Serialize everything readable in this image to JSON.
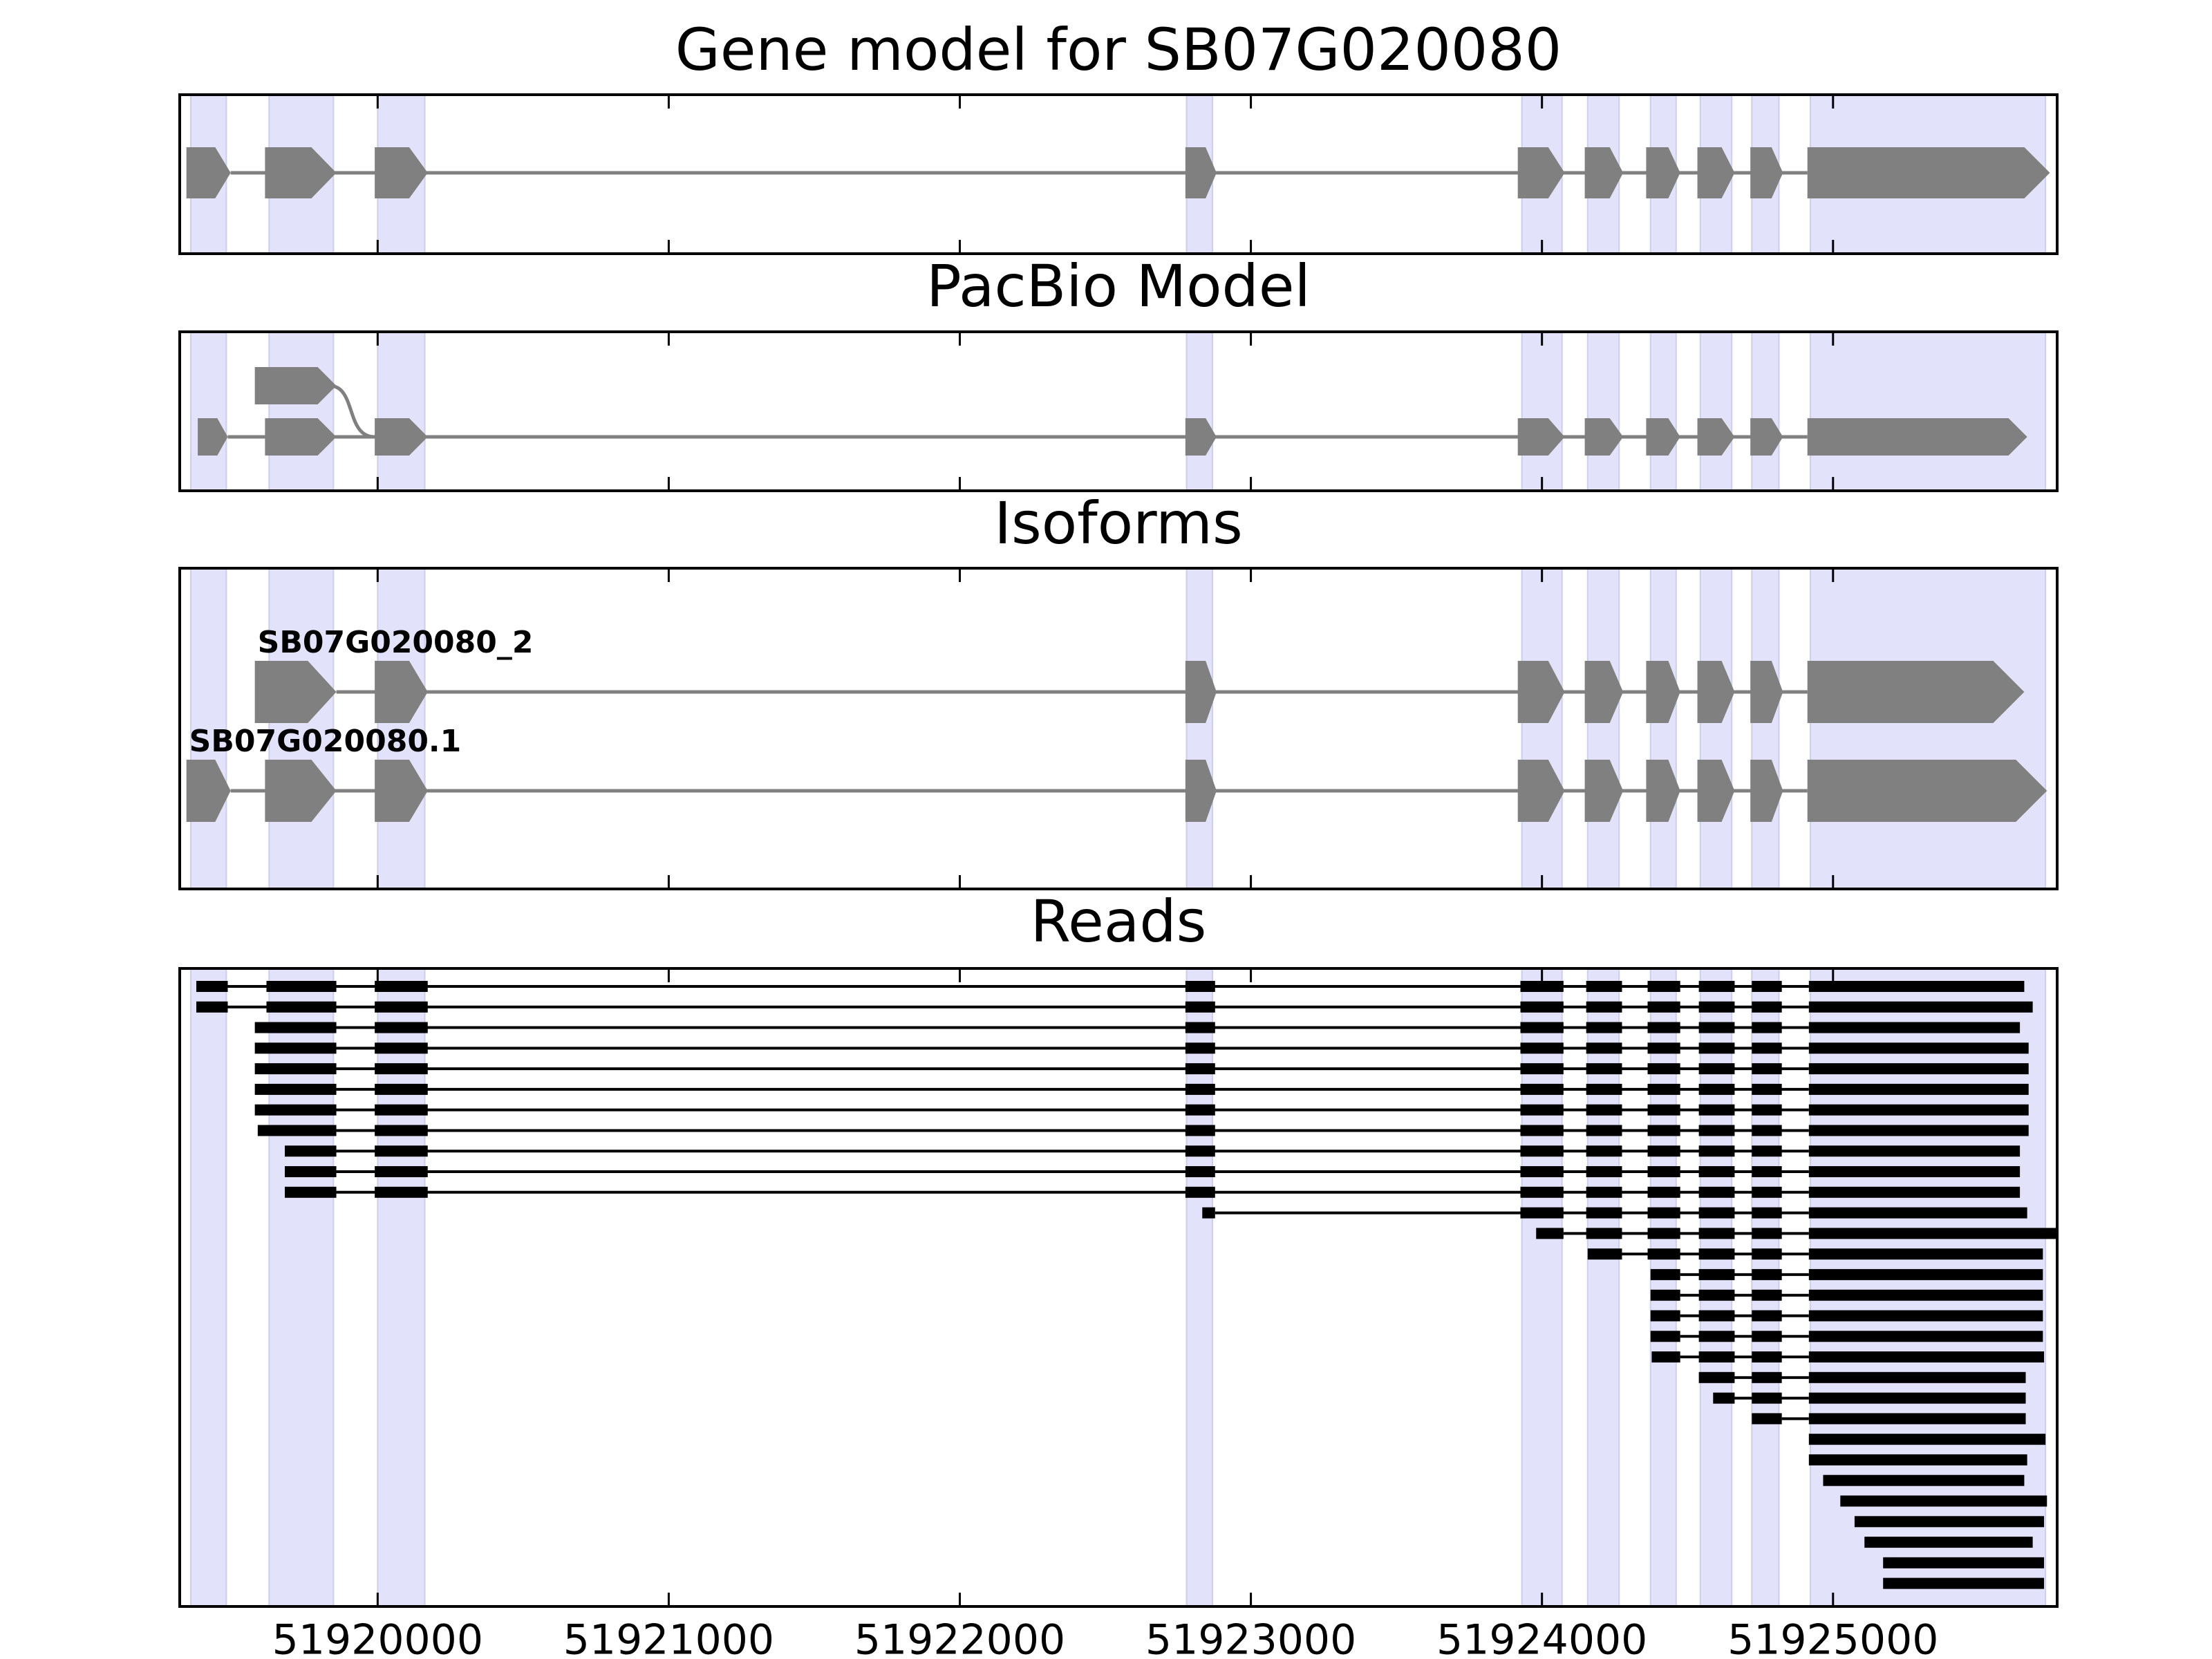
{
  "chart_data": [
    {
      "type": "gene-model",
      "title": "Gene model for SB07G020080",
      "xlim": [
        51919320,
        51925770
      ],
      "xticks": [
        51920000,
        51921000,
        51922000,
        51923000,
        51924000,
        51925000
      ],
      "highlights": [
        [
          51919358,
          51919480
        ],
        [
          51919627,
          51919848
        ],
        [
          51920000,
          51920162
        ],
        [
          51922779,
          51922868
        ],
        [
          51923931,
          51924069
        ],
        [
          51924157,
          51924265
        ],
        [
          51924373,
          51924461
        ],
        [
          51924544,
          51924652
        ],
        [
          51924721,
          51924814
        ],
        [
          51924922,
          51925730
        ]
      ],
      "color": "#808080",
      "rows": [
        {
          "exons": [
            [
              51919343,
              51919495
            ],
            [
              51919613,
              51919858
            ],
            [
              51919990,
              51920172
            ],
            [
              51922775,
              51922882
            ],
            [
              51923917,
              51924078
            ],
            [
              51924147,
              51924279
            ],
            [
              51924358,
              51924475
            ],
            [
              51924534,
              51924662
            ],
            [
              51924716,
              51924828
            ],
            [
              51924912,
              51925745
            ]
          ]
        }
      ]
    },
    {
      "type": "gene-model",
      "title": "PacBio Model",
      "xlim": [
        51919320,
        51925770
      ],
      "xticks": [
        51920000,
        51921000,
        51922000,
        51923000,
        51924000,
        51925000
      ],
      "highlights": [
        [
          51919358,
          51919480
        ],
        [
          51919627,
          51919848
        ],
        [
          51920000,
          51920162
        ],
        [
          51922779,
          51922868
        ],
        [
          51923931,
          51924069
        ],
        [
          51924157,
          51924265
        ],
        [
          51924373,
          51924461
        ],
        [
          51924544,
          51924652
        ],
        [
          51924721,
          51924814
        ],
        [
          51924922,
          51925730
        ]
      ],
      "color": "#808080",
      "rows": [
        {
          "exons": [
            [
              51919578,
              51919858
            ]
          ]
        },
        {
          "exons": [
            [
              51919382,
              51919485
            ],
            [
              51919613,
              51919858
            ],
            [
              51919990,
              51920172
            ],
            [
              51922775,
              51922882
            ],
            [
              51923917,
              51924078
            ],
            [
              51924147,
              51924279
            ],
            [
              51924358,
              51924475
            ],
            [
              51924534,
              51924662
            ],
            [
              51924716,
              51924828
            ],
            [
              51924912,
              51925667
            ]
          ]
        }
      ]
    },
    {
      "type": "gene-model",
      "title": "Isoforms",
      "xlim": [
        51919320,
        51925770
      ],
      "xticks": [
        51920000,
        51921000,
        51922000,
        51923000,
        51924000,
        51925000
      ],
      "highlights": [
        [
          51919358,
          51919480
        ],
        [
          51919627,
          51919848
        ],
        [
          51920000,
          51920162
        ],
        [
          51922779,
          51922868
        ],
        [
          51923931,
          51924069
        ],
        [
          51924157,
          51924265
        ],
        [
          51924373,
          51924461
        ],
        [
          51924544,
          51924652
        ],
        [
          51924721,
          51924814
        ],
        [
          51924922,
          51925730
        ]
      ],
      "color": "#808080",
      "rows": [
        {
          "name": "SB07G020080_2",
          "exons": [
            [
              51919578,
              51919858
            ],
            [
              51919990,
              51920172
            ],
            [
              51922775,
              51922882
            ],
            [
              51923917,
              51924078
            ],
            [
              51924147,
              51924279
            ],
            [
              51924358,
              51924475
            ],
            [
              51924534,
              51924662
            ],
            [
              51924716,
              51924828
            ],
            [
              51924912,
              51925657
            ]
          ]
        },
        {
          "name": "SB07G020080.1",
          "exons": [
            [
              51919343,
              51919495
            ],
            [
              51919613,
              51919858
            ],
            [
              51919990,
              51920172
            ],
            [
              51922775,
              51922882
            ],
            [
              51923917,
              51924078
            ],
            [
              51924147,
              51924279
            ],
            [
              51924358,
              51924475
            ],
            [
              51924534,
              51924662
            ],
            [
              51924716,
              51924828
            ],
            [
              51924912,
              51925735
            ]
          ]
        }
      ]
    },
    {
      "type": "reads",
      "title": "Reads",
      "xlim": [
        51919320,
        51925770
      ],
      "xticks": [
        51920000,
        51921000,
        51922000,
        51923000,
        51924000,
        51925000
      ],
      "highlights": [
        [
          51919358,
          51919480
        ],
        [
          51919627,
          51919848
        ],
        [
          51920000,
          51920162
        ],
        [
          51922779,
          51922868
        ],
        [
          51923931,
          51924069
        ],
        [
          51924157,
          51924265
        ],
        [
          51924373,
          51924461
        ],
        [
          51924544,
          51924652
        ],
        [
          51924721,
          51924814
        ],
        [
          51924922,
          51925730
        ]
      ],
      "color": "#000000",
      "reads": [
        [
          [
            51919377,
            51919485
          ],
          [
            51919618,
            51919858
          ],
          [
            51919990,
            51920172
          ],
          [
            51922775,
            51922877
          ],
          [
            51923926,
            51924074
          ],
          [
            51924152,
            51924275
          ],
          [
            51924363,
            51924475
          ],
          [
            51924539,
            51924662
          ],
          [
            51924721,
            51924824
          ],
          [
            51924917,
            51925657
          ]
        ],
        [
          [
            51919377,
            51919485
          ],
          [
            51919618,
            51919858
          ],
          [
            51919990,
            51920172
          ],
          [
            51922775,
            51922877
          ],
          [
            51923926,
            51924074
          ],
          [
            51924152,
            51924275
          ],
          [
            51924363,
            51924475
          ],
          [
            51924539,
            51924662
          ],
          [
            51924721,
            51924824
          ],
          [
            51924917,
            51925686
          ]
        ],
        [
          [
            51919578,
            51919858
          ],
          [
            51919990,
            51920172
          ],
          [
            51922775,
            51922877
          ],
          [
            51923926,
            51924074
          ],
          [
            51924152,
            51924275
          ],
          [
            51924363,
            51924475
          ],
          [
            51924539,
            51924662
          ],
          [
            51924721,
            51924824
          ],
          [
            51924917,
            51925642
          ]
        ],
        [
          [
            51919578,
            51919858
          ],
          [
            51919990,
            51920172
          ],
          [
            51922775,
            51922877
          ],
          [
            51923926,
            51924074
          ],
          [
            51924152,
            51924275
          ],
          [
            51924363,
            51924475
          ],
          [
            51924539,
            51924662
          ],
          [
            51924721,
            51924824
          ],
          [
            51924917,
            51925672
          ]
        ],
        [
          [
            51919578,
            51919858
          ],
          [
            51919990,
            51920172
          ],
          [
            51922775,
            51922877
          ],
          [
            51923926,
            51924074
          ],
          [
            51924152,
            51924275
          ],
          [
            51924363,
            51924475
          ],
          [
            51924539,
            51924662
          ],
          [
            51924721,
            51924824
          ],
          [
            51924917,
            51925672
          ]
        ],
        [
          [
            51919578,
            51919858
          ],
          [
            51919990,
            51920172
          ],
          [
            51922775,
            51922877
          ],
          [
            51923926,
            51924074
          ],
          [
            51924152,
            51924275
          ],
          [
            51924363,
            51924475
          ],
          [
            51924539,
            51924662
          ],
          [
            51924721,
            51924824
          ],
          [
            51924917,
            51925672
          ]
        ],
        [
          [
            51919578,
            51919858
          ],
          [
            51919990,
            51920172
          ],
          [
            51922775,
            51922877
          ],
          [
            51923926,
            51924074
          ],
          [
            51924152,
            51924275
          ],
          [
            51924363,
            51924475
          ],
          [
            51924539,
            51924662
          ],
          [
            51924721,
            51924824
          ],
          [
            51924917,
            51925672
          ]
        ],
        [
          [
            51919588,
            51919858
          ],
          [
            51919990,
            51920172
          ],
          [
            51922775,
            51922877
          ],
          [
            51923926,
            51924074
          ],
          [
            51924152,
            51924275
          ],
          [
            51924363,
            51924475
          ],
          [
            51924539,
            51924662
          ],
          [
            51924721,
            51924824
          ],
          [
            51924917,
            51925672
          ]
        ],
        [
          [
            51919681,
            51919858
          ],
          [
            51919990,
            51920172
          ],
          [
            51922775,
            51922877
          ],
          [
            51923926,
            51924074
          ],
          [
            51924152,
            51924275
          ],
          [
            51924363,
            51924475
          ],
          [
            51924539,
            51924662
          ],
          [
            51924721,
            51924824
          ],
          [
            51924917,
            51925642
          ]
        ],
        [
          [
            51919681,
            51919858
          ],
          [
            51919990,
            51920172
          ],
          [
            51922775,
            51922877
          ],
          [
            51923926,
            51924074
          ],
          [
            51924152,
            51924275
          ],
          [
            51924363,
            51924475
          ],
          [
            51924539,
            51924662
          ],
          [
            51924721,
            51924824
          ],
          [
            51924917,
            51925642
          ]
        ],
        [
          [
            51919681,
            51919858
          ],
          [
            51919990,
            51920172
          ],
          [
            51922775,
            51922877
          ],
          [
            51923926,
            51924074
          ],
          [
            51924152,
            51924275
          ],
          [
            51924363,
            51924475
          ],
          [
            51924539,
            51924662
          ],
          [
            51924721,
            51924824
          ],
          [
            51924917,
            51925642
          ]
        ],
        [
          [
            51922833,
            51922877
          ],
          [
            51923926,
            51924074
          ],
          [
            51924152,
            51924275
          ],
          [
            51924363,
            51924475
          ],
          [
            51924539,
            51924662
          ],
          [
            51924721,
            51924824
          ],
          [
            51924917,
            51925667
          ]
        ],
        [
          [
            51923980,
            51924074
          ],
          [
            51924152,
            51924275
          ],
          [
            51924363,
            51924475
          ],
          [
            51924539,
            51924662
          ],
          [
            51924721,
            51924824
          ],
          [
            51924917,
            51925770
          ]
        ],
        [
          [
            51924157,
            51924275
          ],
          [
            51924363,
            51924475
          ],
          [
            51924539,
            51924662
          ],
          [
            51924721,
            51924824
          ],
          [
            51924917,
            51925721
          ]
        ],
        [
          [
            51924373,
            51924475
          ],
          [
            51924539,
            51924662
          ],
          [
            51924721,
            51924824
          ],
          [
            51924917,
            51925721
          ]
        ],
        [
          [
            51924373,
            51924475
          ],
          [
            51924539,
            51924662
          ],
          [
            51924721,
            51924824
          ],
          [
            51924917,
            51925721
          ]
        ],
        [
          [
            51924373,
            51924475
          ],
          [
            51924539,
            51924662
          ],
          [
            51924721,
            51924824
          ],
          [
            51924917,
            51925721
          ]
        ],
        [
          [
            51924373,
            51924475
          ],
          [
            51924539,
            51924662
          ],
          [
            51924721,
            51924824
          ],
          [
            51924917,
            51925721
          ]
        ],
        [
          [
            51924377,
            51924475
          ],
          [
            51924539,
            51924662
          ],
          [
            51924721,
            51924824
          ],
          [
            51924917,
            51925725
          ]
        ],
        [
          [
            51924539,
            51924662
          ],
          [
            51924721,
            51924824
          ],
          [
            51924917,
            51925662
          ]
        ],
        [
          [
            51924588,
            51924662
          ],
          [
            51924721,
            51924824
          ],
          [
            51924917,
            51925662
          ]
        ],
        [
          [
            51924721,
            51924824
          ],
          [
            51924917,
            51925662
          ]
        ],
        [
          [
            51924917,
            51925730
          ]
        ],
        [
          [
            51924917,
            51925667
          ]
        ],
        [
          [
            51924966,
            51925657
          ]
        ],
        [
          [
            51925025,
            51925735
          ]
        ],
        [
          [
            51925074,
            51925725
          ]
        ],
        [
          [
            51925108,
            51925686
          ]
        ],
        [
          [
            51925172,
            51925725
          ]
        ],
        [
          [
            51925172,
            51925725
          ]
        ]
      ]
    }
  ]
}
